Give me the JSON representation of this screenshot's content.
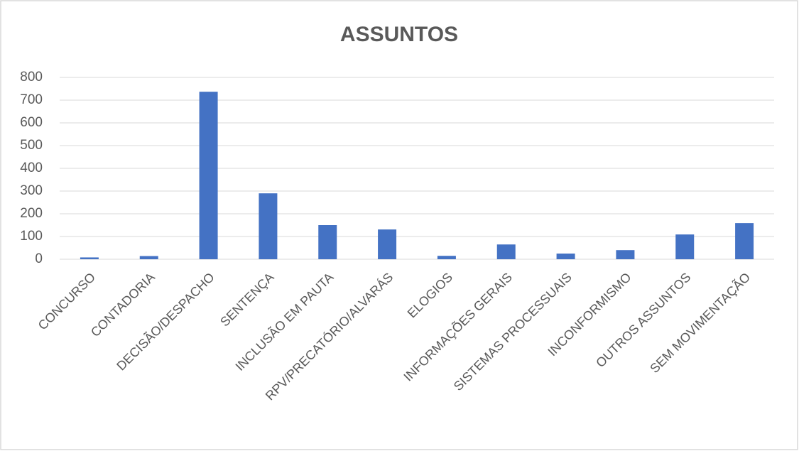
{
  "chart_data": {
    "type": "bar",
    "title": "ASSUNTOS",
    "categories": [
      "CONCURSO",
      "CONTADORIA",
      "DECISÃO/DESPACHO",
      "SENTENÇA",
      "INCLUSÃO EM PAUTA",
      "RPV/PRECATÓRIO/ALVARÁS",
      "ELOGIOS",
      "INFORMAÇÕES GERAIS",
      "SISTEMAS PROCESSUAIS",
      "INCONFORMISMO",
      "OUTROS ASSUNTOS",
      "SEM MOVIMENTAÇÃO"
    ],
    "values": [
      8,
      14,
      737,
      290,
      150,
      131,
      15,
      65,
      25,
      40,
      109,
      159
    ],
    "color": "#4472c4",
    "ylim": [
      0,
      800
    ],
    "yticks": [
      0,
      100,
      200,
      300,
      400,
      500,
      600,
      700,
      800
    ],
    "grid": true
  }
}
